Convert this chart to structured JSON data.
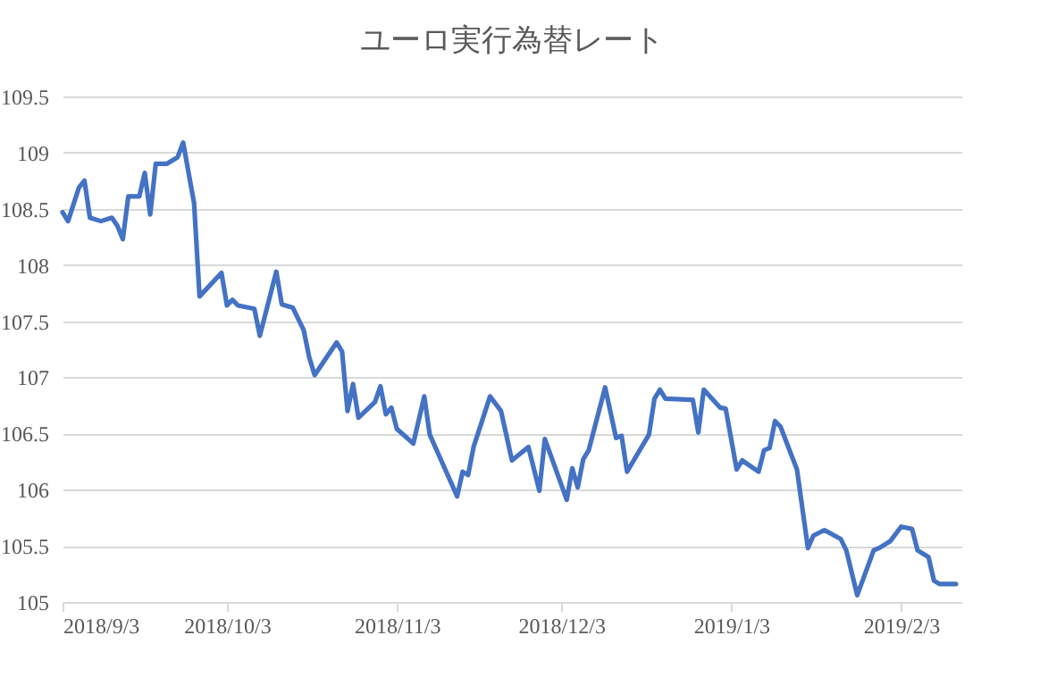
{
  "chart_data": {
    "type": "line",
    "title": "ユーロ実行為替レート",
    "x": [
      "2018-09-03",
      "2018-09-04",
      "2018-09-06",
      "2018-09-07",
      "2018-09-08",
      "2018-09-10",
      "2018-09-12",
      "2018-09-13",
      "2018-09-14",
      "2018-09-15",
      "2018-09-17",
      "2018-09-18",
      "2018-09-19",
      "2018-09-20",
      "2018-09-22",
      "2018-09-24",
      "2018-09-25",
      "2018-09-27",
      "2018-09-28",
      "2018-10-02",
      "2018-10-03",
      "2018-10-04",
      "2018-10-05",
      "2018-10-08",
      "2018-10-09",
      "2018-10-12",
      "2018-10-13",
      "2018-10-15",
      "2018-10-17",
      "2018-10-18",
      "2018-10-19",
      "2018-10-23",
      "2018-10-24",
      "2018-10-25",
      "2018-10-26",
      "2018-10-27",
      "2018-10-30",
      "2018-10-31",
      "2018-11-01",
      "2018-11-02",
      "2018-11-03",
      "2018-11-06",
      "2018-11-08",
      "2018-11-09",
      "2018-11-11",
      "2018-11-14",
      "2018-11-15",
      "2018-11-16",
      "2018-11-17",
      "2018-11-20",
      "2018-11-22",
      "2018-11-24",
      "2018-11-27",
      "2018-11-29",
      "2018-11-30",
      "2018-12-04",
      "2018-12-05",
      "2018-12-06",
      "2018-12-07",
      "2018-12-08",
      "2018-12-11",
      "2018-12-13",
      "2018-12-14",
      "2018-12-15",
      "2018-12-19",
      "2018-12-20",
      "2018-12-21",
      "2018-12-22",
      "2018-12-27",
      "2018-12-28",
      "2018-12-29",
      "2019-01-01",
      "2019-01-02",
      "2019-01-04",
      "2019-01-05",
      "2019-01-08",
      "2019-01-09",
      "2019-01-10",
      "2019-01-11",
      "2019-01-12",
      "2019-01-15",
      "2019-01-17",
      "2019-01-18",
      "2019-01-20",
      "2019-01-23",
      "2019-01-24",
      "2019-01-26",
      "2019-01-29",
      "2019-01-30",
      "2019-02-01",
      "2019-02-03",
      "2019-02-05",
      "2019-02-06",
      "2019-02-08",
      "2019-02-09",
      "2019-02-10",
      "2019-02-13"
    ],
    "series": [
      {
        "color": "#4472c4",
        "values": [
          108.47,
          108.39,
          108.69,
          108.75,
          108.42,
          108.39,
          108.42,
          108.35,
          108.23,
          108.61,
          108.61,
          108.82,
          108.45,
          108.9,
          108.9,
          108.96,
          109.09,
          108.55,
          107.72,
          107.93,
          107.64,
          107.69,
          107.64,
          107.61,
          107.37,
          107.94,
          107.65,
          107.62,
          107.42,
          107.18,
          107.02,
          107.31,
          107.23,
          106.7,
          106.94,
          106.64,
          106.78,
          106.92,
          106.67,
          106.73,
          106.54,
          106.41,
          106.83,
          106.49,
          106.27,
          105.94,
          106.16,
          106.13,
          106.38,
          106.83,
          106.7,
          106.26,
          106.38,
          105.99,
          106.45,
          105.91,
          106.19,
          106.02,
          106.27,
          106.35,
          106.91,
          106.46,
          106.48,
          106.16,
          106.49,
          106.81,
          106.89,
          106.81,
          106.8,
          106.51,
          106.89,
          106.73,
          106.72,
          106.18,
          106.26,
          106.16,
          106.35,
          106.37,
          106.61,
          106.56,
          106.18,
          105.48,
          105.59,
          105.64,
          105.56,
          105.46,
          105.06,
          105.46,
          105.48,
          105.54,
          105.67,
          105.65,
          105.46,
          105.4,
          105.19,
          105.16,
          105.16
        ]
      }
    ],
    "xlim": [
      "2018-09-03",
      "2019-02-14"
    ],
    "xticks": [
      {
        "value": "2018-09-03",
        "label": "2018/9/3"
      },
      {
        "value": "2018-10-03",
        "label": "2018/10/3"
      },
      {
        "value": "2018-11-03",
        "label": "2018/11/3"
      },
      {
        "value": "2018-12-03",
        "label": "2018/12/3"
      },
      {
        "value": "2019-01-03",
        "label": "2019/1/3"
      },
      {
        "value": "2019-02-03",
        "label": "2019/2/3"
      }
    ],
    "ylim": [
      105,
      109.5
    ],
    "yticks": [
      105,
      105.5,
      106,
      106.5,
      107,
      107.5,
      108,
      108.5,
      109,
      109.5
    ],
    "grid": "y",
    "marker": "none",
    "line_style": "solid"
  }
}
